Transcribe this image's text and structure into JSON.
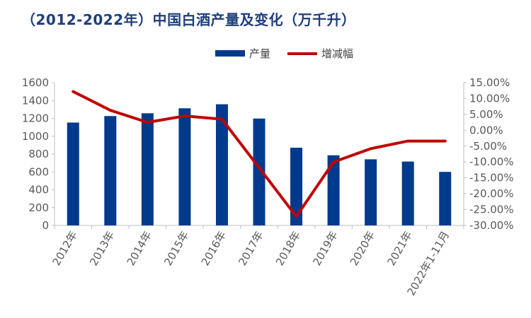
{
  "chart_data": {
    "type": "bar",
    "title": "（2012-2022年）中国白酒产量及变化（万千升）",
    "categories": [
      "2012年",
      "2013年",
      "2014年",
      "2015年",
      "2016年",
      "2017年",
      "2018年",
      "2019年",
      "2020年",
      "2021年",
      "2022年1-11月"
    ],
    "series": [
      {
        "name": "产量",
        "type": "bar",
        "axis": "left",
        "color": "#003a8c",
        "values": [
          1153,
          1226,
          1257,
          1313,
          1358,
          1198,
          871,
          786,
          741,
          716,
          600
        ]
      },
      {
        "name": "增减幅",
        "type": "line",
        "axis": "right",
        "color": "#c00000",
        "values": [
          12.2,
          6.3,
          2.5,
          4.5,
          3.5,
          -11.8,
          -27.2,
          -10.0,
          -5.8,
          -3.4,
          -3.4
        ]
      }
    ],
    "y_left": {
      "min": 0,
      "max": 1600,
      "ticks": [
        "0",
        "200",
        "400",
        "600",
        "800",
        "1000",
        "1200",
        "1400",
        "1600"
      ]
    },
    "y_right": {
      "min": -30,
      "max": 15,
      "ticks": [
        "-30.00%",
        "-25.00%",
        "-20.00%",
        "-15.00%",
        "-10.00%",
        "-5.00%",
        "0.00%",
        "5.00%",
        "10.00%",
        "15.00%"
      ]
    },
    "legend_position": "top-center",
    "grid": false
  }
}
